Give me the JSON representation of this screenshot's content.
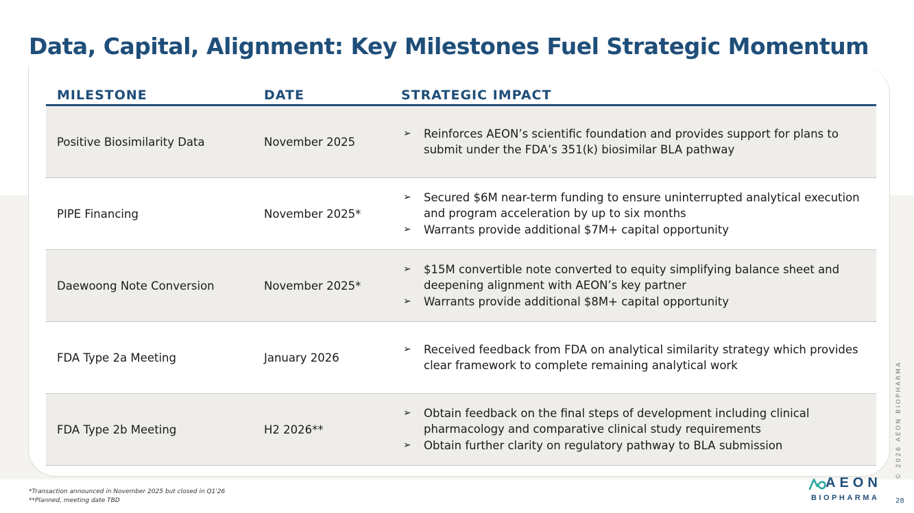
{
  "title": "Data, Capital, Alignment: Key Milestones Fuel Strategic Momentum",
  "table": {
    "headers": {
      "milestone": "MILESTONE",
      "date": "DATE",
      "impact": "STRATEGIC IMPACT"
    },
    "rows": [
      {
        "milestone": "Positive Biosimilarity Data",
        "date": "November 2025",
        "impacts": [
          "Reinforces AEON’s scientific foundation and provides support for plans to submit under the FDA’s 351(k) biosimilar BLA pathway"
        ]
      },
      {
        "milestone": "PIPE Financing",
        "date": "November 2025*",
        "impacts": [
          "Secured $6M near-term funding to ensure uninterrupted analytical execution and program acceleration by up to six months",
          "Warrants provide additional $7M+ capital opportunity"
        ]
      },
      {
        "milestone": "Daewoong Note Conversion",
        "date": "November 2025*",
        "impacts": [
          "$15M convertible note converted to equity simplifying balance sheet and deepening alignment with AEON’s key partner",
          "Warrants provide additional $8M+ capital opportunity"
        ]
      },
      {
        "milestone": "FDA Type 2a Meeting",
        "date": "January 2026",
        "impacts": [
          "Received feedback from FDA on analytical similarity strategy which provides clear framework to complete remaining analytical work"
        ]
      },
      {
        "milestone": "FDA Type 2b Meeting",
        "date": "H2 2026**",
        "impacts": [
          "Obtain feedback on the final steps of development including clinical pharmacology and comparative clinical study requirements",
          "Obtain further clarity on regulatory pathway to BLA submission"
        ]
      }
    ]
  },
  "bullet_glyph": "➢",
  "footnotes": [
    "*Transaction announced in November 2025 but closed in Q1'26",
    "**Planned, meeting date TBD"
  ],
  "logo": {
    "word": "AEON",
    "sub": "BIOPHARMA"
  },
  "copyright": "© 2026 AEON BIOPHARMA",
  "page_number": "28",
  "colors": {
    "brand": "#1f4e79",
    "row_shade": "#eeede9",
    "band": "#f4f3f0"
  }
}
